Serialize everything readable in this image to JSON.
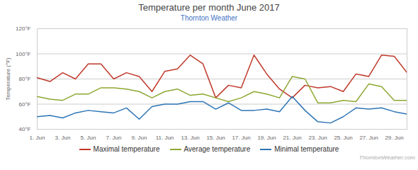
{
  "chart_data": {
    "type": "line",
    "title": "Temperature per month June 2017",
    "subtitle": "Thornton Weather",
    "annotations": [
      "ThorntonWeather.com"
    ],
    "ylabel": "Temperature (°F)",
    "x": [
      1,
      2,
      3,
      4,
      5,
      6,
      7,
      8,
      9,
      10,
      11,
      12,
      13,
      14,
      15,
      16,
      17,
      18,
      19,
      20,
      21,
      22,
      23,
      24,
      25,
      26,
      27,
      28,
      29,
      30
    ],
    "xlim": [
      1,
      30
    ],
    "xticks": [
      {
        "value": 1,
        "label": "1. Jun"
      },
      {
        "value": 3,
        "label": "3. Jun"
      },
      {
        "value": 5,
        "label": "5. Jun"
      },
      {
        "value": 7,
        "label": "7. Jun"
      },
      {
        "value": 9,
        "label": "9. Jun"
      },
      {
        "value": 11,
        "label": "11. Jun"
      },
      {
        "value": 13,
        "label": "13. Jun"
      },
      {
        "value": 15,
        "label": "15. Jun"
      },
      {
        "value": 17,
        "label": "17. Jun"
      },
      {
        "value": 19,
        "label": "19. Jun"
      },
      {
        "value": 21,
        "label": "21. Jun"
      },
      {
        "value": 23,
        "label": "23. Jun"
      },
      {
        "value": 25,
        "label": "25. Jun"
      },
      {
        "value": 27,
        "label": "27. Jun"
      },
      {
        "value": 29,
        "label": "29. Jun"
      }
    ],
    "ylim": [
      40,
      120
    ],
    "yticks": [
      {
        "value": 40,
        "label": "40°F"
      },
      {
        "value": 60,
        "label": "60°F"
      },
      {
        "value": 80,
        "label": "80°F"
      },
      {
        "value": 100,
        "label": "100°F"
      },
      {
        "value": 120,
        "label": "120°F"
      }
    ],
    "grid": true,
    "legend": "bottom",
    "series": [
      {
        "name": "Maximal temperature",
        "color": "#c0392b",
        "values": [
          81,
          78,
          85,
          80,
          92,
          92,
          80,
          85,
          82,
          70,
          86,
          88,
          99,
          92,
          65,
          75,
          73,
          99,
          84,
          72,
          65,
          75,
          73,
          74,
          70,
          84,
          82,
          99,
          98,
          85
        ]
      },
      {
        "name": "Average temperature",
        "color": "#8da832",
        "values": [
          66,
          64,
          63,
          68,
          68,
          73,
          73,
          72,
          70,
          65,
          70,
          72,
          67,
          68,
          65,
          62,
          65,
          70,
          68,
          65,
          82,
          80,
          61,
          61,
          63,
          62,
          76,
          74,
          63,
          63
        ]
      },
      {
        "name": "Minimal temperature",
        "color": "#2e75b6",
        "values": [
          50,
          51,
          49,
          53,
          55,
          54,
          53,
          57,
          48,
          58,
          60,
          60,
          62,
          62,
          56,
          61,
          55,
          55,
          56,
          54,
          66,
          55,
          46,
          45,
          50,
          57,
          56,
          57,
          54,
          52
        ]
      }
    ]
  }
}
